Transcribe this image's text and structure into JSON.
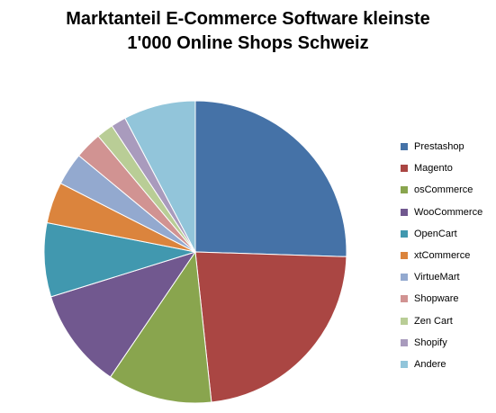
{
  "chart_data": {
    "type": "pie",
    "title_lines": [
      "Marktanteil E-Commerce Software kleinste",
      "1'000 Online Shops Schweiz"
    ],
    "legend_position": "right",
    "start_angle_deg": 0,
    "direction": "clockwise",
    "slices": [
      {
        "label": "Prestashop",
        "value": 25.5,
        "color": "#4572A7"
      },
      {
        "label": "Magento",
        "value": 22.8,
        "color": "#AA4643"
      },
      {
        "label": "osCommerce",
        "value": 11.2,
        "color": "#89A54E"
      },
      {
        "label": "WooCommerce",
        "value": 10.7,
        "color": "#71588F"
      },
      {
        "label": "OpenCart",
        "value": 7.9,
        "color": "#4198AF"
      },
      {
        "label": "xtCommerce",
        "value": 4.4,
        "color": "#DB843D"
      },
      {
        "label": "VirtueMart",
        "value": 3.5,
        "color": "#93A9CF"
      },
      {
        "label": "Shopware",
        "value": 2.9,
        "color": "#D19392"
      },
      {
        "label": "Zen Cart",
        "value": 1.8,
        "color": "#B9CD96"
      },
      {
        "label": "Shopify",
        "value": 1.6,
        "color": "#A99BBD"
      },
      {
        "label": "Andere",
        "value": 7.7,
        "color": "#92C5DA"
      }
    ]
  }
}
